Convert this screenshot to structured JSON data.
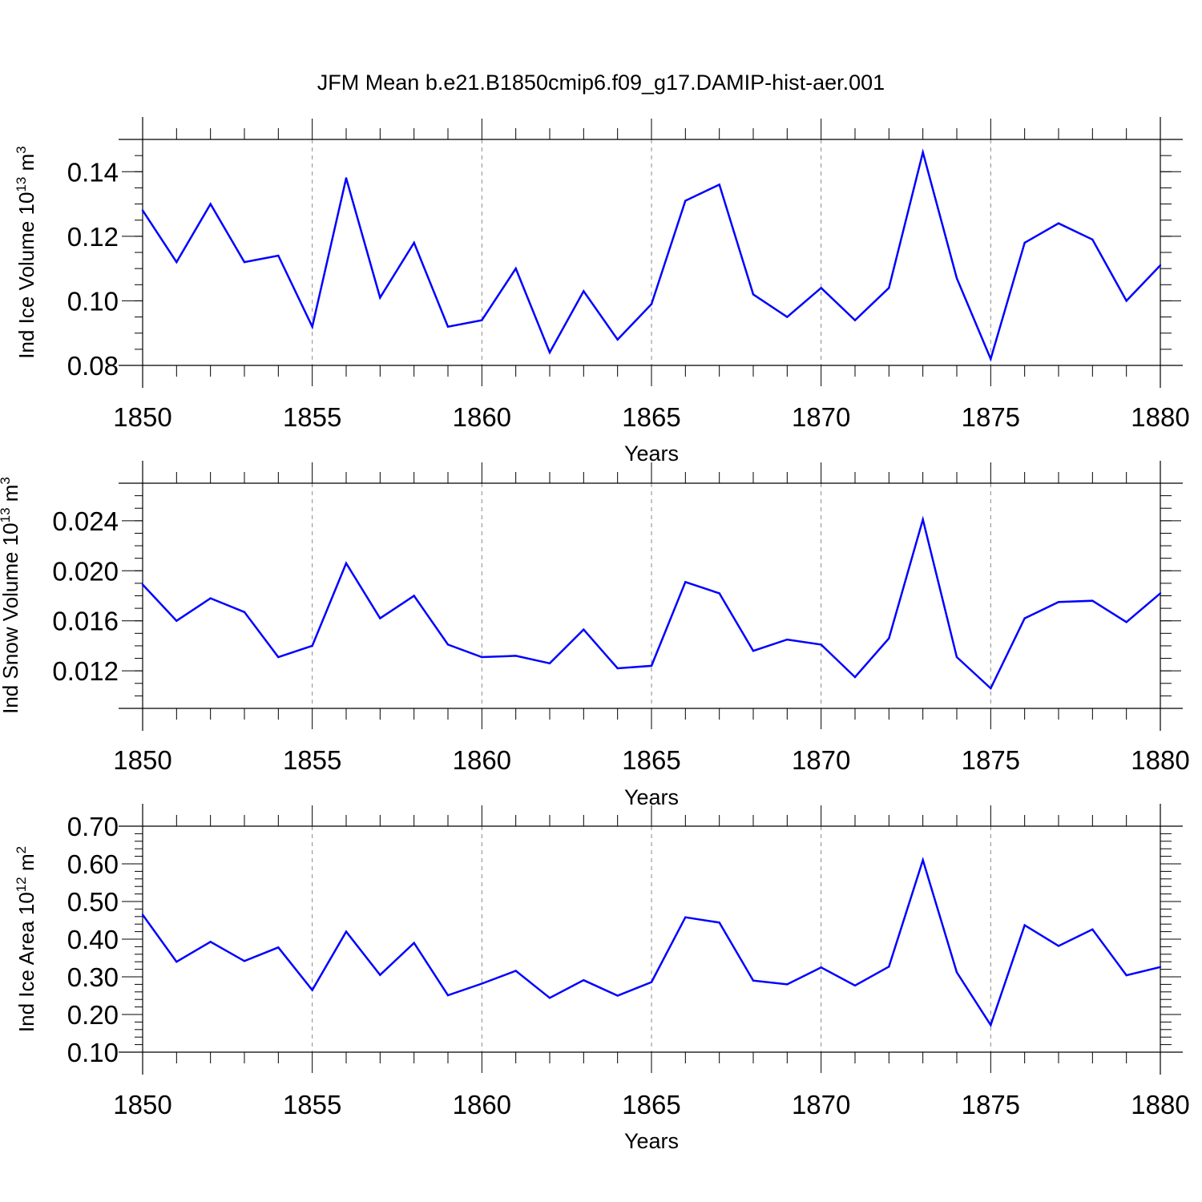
{
  "title": "JFM Mean b.e21.B1850cmip6.f09_g17.DAMIP-hist-aer.001",
  "colors": {
    "line": "#0000ff",
    "frame": "#000000",
    "grid": "#888888"
  },
  "chart_data": [
    {
      "type": "line",
      "xlabel": "Years",
      "ylabel_main": "Ind Ice Volume 10",
      "ylabel_sup": "13",
      "ylabel_unit": " m",
      "ylabel_unit_sup": "3",
      "xlim": [
        1850,
        1880
      ],
      "ylim": [
        0.08,
        0.15
      ],
      "xticks": [
        1850,
        1855,
        1860,
        1865,
        1870,
        1875,
        1880
      ],
      "xtick_labels": [
        "1850",
        "1855",
        "1860",
        "1865",
        "1870",
        "1875",
        "1880"
      ],
      "yticks": [
        0.08,
        0.1,
        0.12,
        0.14
      ],
      "ytick_labels": [
        "0.08",
        "0.10",
        "0.12",
        "0.14"
      ],
      "y_minor_step": 0.005,
      "grid": "vertical dashed at major x ticks",
      "x": [
        1850,
        1851,
        1852,
        1853,
        1854,
        1855,
        1856,
        1857,
        1858,
        1859,
        1860,
        1861,
        1862,
        1863,
        1864,
        1865,
        1866,
        1867,
        1868,
        1869,
        1870,
        1871,
        1872,
        1873,
        1874,
        1875,
        1876,
        1877,
        1878,
        1879,
        1880
      ],
      "values": [
        0.128,
        0.112,
        0.13,
        0.112,
        0.114,
        0.092,
        0.138,
        0.101,
        0.118,
        0.092,
        0.094,
        0.11,
        0.084,
        0.103,
        0.088,
        0.099,
        0.131,
        0.136,
        0.102,
        0.095,
        0.104,
        0.094,
        0.104,
        0.146,
        0.107,
        0.082,
        0.118,
        0.124,
        0.119,
        0.1,
        0.111
      ]
    },
    {
      "type": "line",
      "xlabel": "Years",
      "ylabel_main": "Ind Snow Volume 10",
      "ylabel_sup": "13",
      "ylabel_unit": " m",
      "ylabel_unit_sup": "3",
      "xlim": [
        1850,
        1880
      ],
      "ylim": [
        0.009,
        0.027
      ],
      "xticks": [
        1850,
        1855,
        1860,
        1865,
        1870,
        1875,
        1880
      ],
      "xtick_labels": [
        "1850",
        "1855",
        "1860",
        "1865",
        "1870",
        "1875",
        "1880"
      ],
      "yticks": [
        0.012,
        0.016,
        0.02,
        0.024
      ],
      "ytick_labels": [
        "0.012",
        "0.016",
        "0.020",
        "0.024"
      ],
      "y_minor_step": 0.001,
      "grid": "vertical dashed at major x ticks",
      "x": [
        1850,
        1851,
        1852,
        1853,
        1854,
        1855,
        1856,
        1857,
        1858,
        1859,
        1860,
        1861,
        1862,
        1863,
        1864,
        1865,
        1866,
        1867,
        1868,
        1869,
        1870,
        1871,
        1872,
        1873,
        1874,
        1875,
        1876,
        1877,
        1878,
        1879,
        1880
      ],
      "values": [
        0.0189,
        0.016,
        0.0178,
        0.0167,
        0.0131,
        0.014,
        0.0206,
        0.0162,
        0.018,
        0.0141,
        0.0131,
        0.0132,
        0.0126,
        0.0153,
        0.0122,
        0.0124,
        0.0191,
        0.0182,
        0.0136,
        0.0145,
        0.0141,
        0.0115,
        0.0146,
        0.0241,
        0.0131,
        0.0106,
        0.0162,
        0.0175,
        0.0176,
        0.0159,
        0.0182
      ]
    },
    {
      "type": "line",
      "xlabel": "Years",
      "ylabel_main": "Ind Ice Area 10",
      "ylabel_sup": "12",
      "ylabel_unit": " m",
      "ylabel_unit_sup": "2",
      "xlim": [
        1850,
        1880
      ],
      "ylim": [
        0.1,
        0.7
      ],
      "xticks": [
        1850,
        1855,
        1860,
        1865,
        1870,
        1875,
        1880
      ],
      "xtick_labels": [
        "1850",
        "1855",
        "1860",
        "1865",
        "1870",
        "1875",
        "1880"
      ],
      "yticks": [
        0.1,
        0.2,
        0.3,
        0.4,
        0.5,
        0.6,
        0.7
      ],
      "ytick_labels": [
        "0.10",
        "0.20",
        "0.30",
        "0.40",
        "0.50",
        "0.60",
        "0.70"
      ],
      "y_minor_step": 0.02,
      "grid": "vertical dashed at major x ticks",
      "x": [
        1850,
        1851,
        1852,
        1853,
        1854,
        1855,
        1856,
        1857,
        1858,
        1859,
        1860,
        1861,
        1862,
        1863,
        1864,
        1865,
        1866,
        1867,
        1868,
        1869,
        1870,
        1871,
        1872,
        1873,
        1874,
        1875,
        1876,
        1877,
        1878,
        1879,
        1880
      ],
      "values": [
        0.465,
        0.34,
        0.393,
        0.342,
        0.378,
        0.265,
        0.42,
        0.305,
        0.39,
        0.251,
        0.282,
        0.316,
        0.244,
        0.291,
        0.25,
        0.286,
        0.458,
        0.444,
        0.29,
        0.28,
        0.325,
        0.277,
        0.327,
        0.61,
        0.312,
        0.172,
        0.437,
        0.382,
        0.426,
        0.304,
        0.326
      ]
    }
  ]
}
